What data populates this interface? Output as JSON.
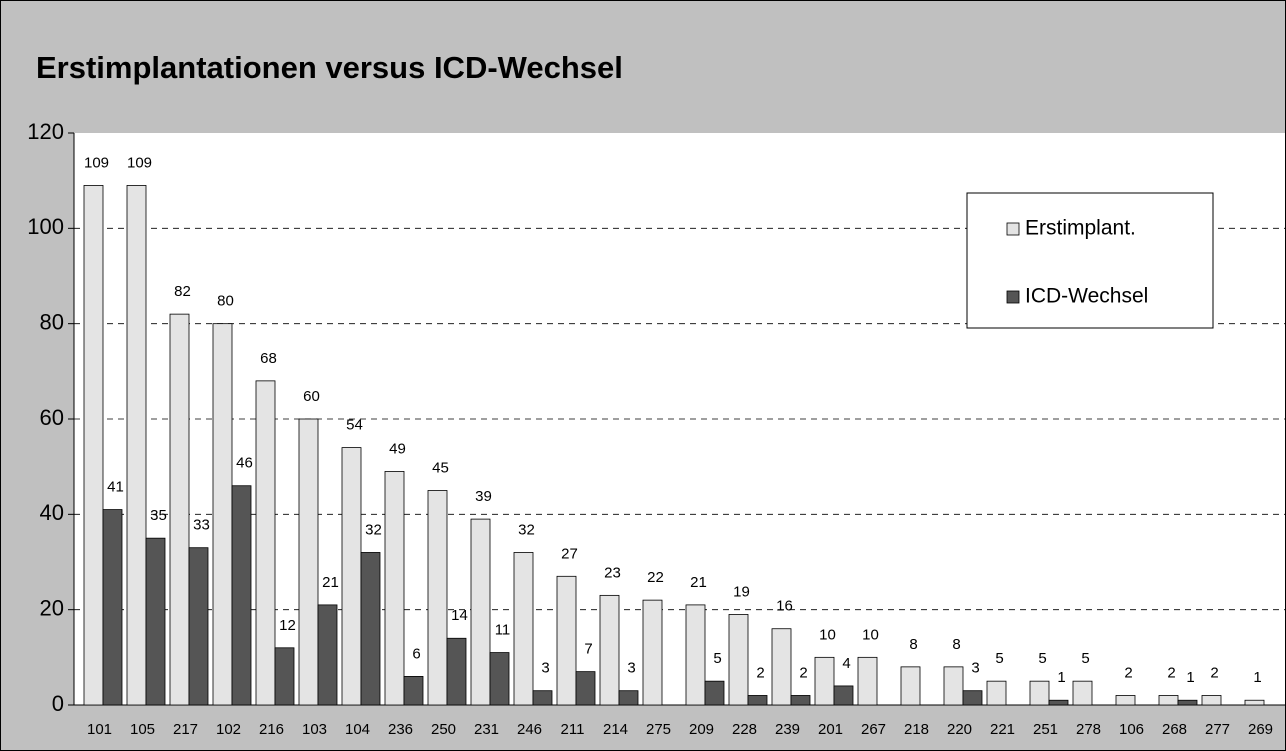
{
  "chart_data": {
    "type": "bar",
    "title": "Erstimplantationen versus ICD-Wechsel",
    "categories": [
      "101",
      "105",
      "217",
      "102",
      "216",
      "103",
      "104",
      "236",
      "250",
      "231",
      "246",
      "211",
      "214",
      "275",
      "209",
      "228",
      "239",
      "201",
      "267",
      "218",
      "220",
      "221",
      "251",
      "278",
      "106",
      "268",
      "277",
      "269"
    ],
    "series": [
      {
        "name": "Erstimplant.",
        "color": "#e4e4e4",
        "values": [
          109,
          109,
          82,
          80,
          68,
          60,
          54,
          49,
          45,
          39,
          32,
          27,
          23,
          22,
          21,
          19,
          16,
          10,
          10,
          8,
          8,
          5,
          5,
          5,
          2,
          2,
          2,
          1
        ]
      },
      {
        "name": "ICD-Wechsel",
        "color": "#555555",
        "values": [
          41,
          35,
          33,
          46,
          12,
          21,
          32,
          6,
          14,
          11,
          3,
          7,
          3,
          null,
          5,
          2,
          2,
          4,
          null,
          null,
          3,
          null,
          1,
          null,
          null,
          1,
          null,
          null
        ]
      }
    ],
    "ylim": [
      0,
      120
    ],
    "yticks": [
      0,
      20,
      40,
      60,
      80,
      100,
      120
    ],
    "grid": true,
    "legend": "upper right"
  }
}
